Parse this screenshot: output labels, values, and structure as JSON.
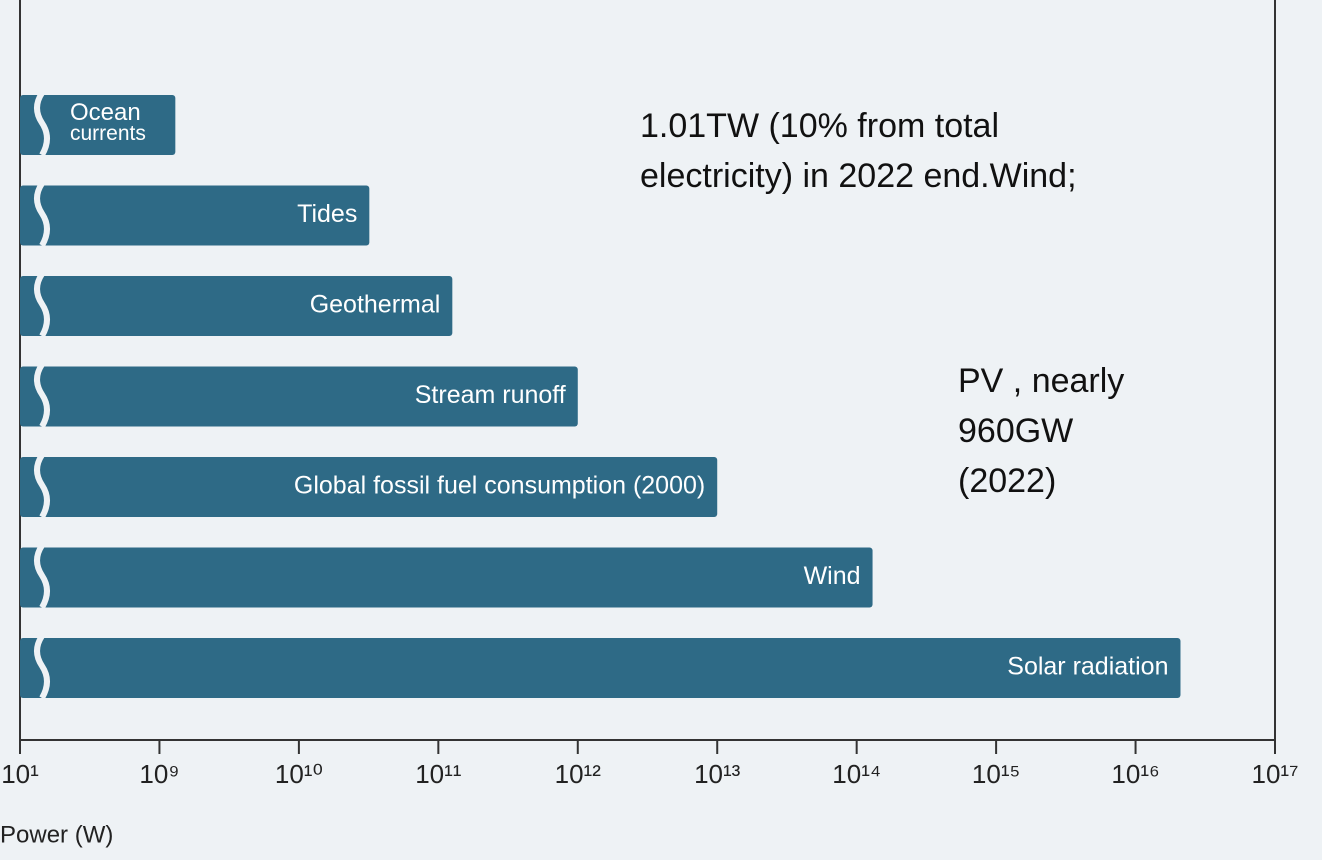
{
  "chart_data": {
    "type": "bar",
    "orientation": "horizontal",
    "categories": [
      "Ocean currents",
      "Tides",
      "Geothermal",
      "Stream runoff",
      "Global fossil fuel consumption (2000)",
      "Wind",
      "Solar radiation"
    ],
    "values": [
      1300000000,
      32000000000,
      126000000000,
      1000000000000,
      10000000000000,
      130000000000000,
      21000000000000000
    ],
    "color": "#2e6a86",
    "xlabel": "Power (W)",
    "xscale": "log",
    "xlim": [
      10,
      100000000000000000
    ],
    "xbreak": [
      10,
      1000000000
    ],
    "xticks": [
      {
        "value": 10,
        "label": "10¹"
      },
      {
        "value": 1000000000,
        "label": "10⁹"
      },
      {
        "value": 10000000000,
        "label": "10¹⁰"
      },
      {
        "value": 100000000000,
        "label": "10¹¹"
      },
      {
        "value": 1000000000000,
        "label": "10¹²"
      },
      {
        "value": 10000000000000,
        "label": "10¹³"
      },
      {
        "value": 100000000000000,
        "label": "10¹⁴"
      },
      {
        "value": 1000000000000000,
        "label": "10¹⁵"
      },
      {
        "value": 10000000000000000,
        "label": "10¹⁶"
      },
      {
        "value": 100000000000000000,
        "label": "10¹⁷"
      }
    ],
    "annotations": [
      {
        "lines": [
          "1.01TW (10% from total",
          "electricity) in 2022 end.Wind;"
        ]
      },
      {
        "lines": [
          "PV , nearly",
          "960GW",
          "(2022)"
        ]
      }
    ]
  }
}
